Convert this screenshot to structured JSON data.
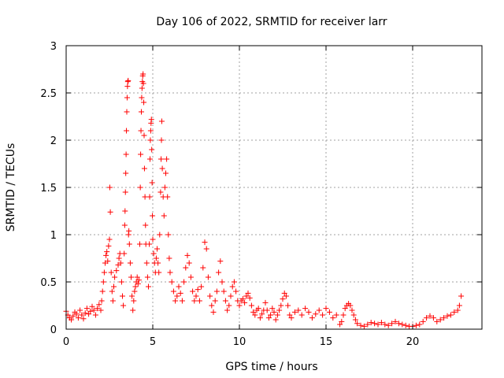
{
  "chart_data": {
    "type": "scatter",
    "title": "Day 106 of 2022, SRMTID for receiver larr",
    "xlabel": "GPS time / hours",
    "ylabel": "SRMTID / TECUs",
    "xlim": [
      0,
      24
    ],
    "ylim": [
      0,
      3
    ],
    "xticks": [
      0,
      5,
      10,
      15,
      20
    ],
    "xtick_labels": [
      "0",
      "5",
      "10",
      "15",
      "20"
    ],
    "yticks": [
      0,
      0.5,
      1,
      1.5,
      2,
      2.5,
      3
    ],
    "ytick_labels": [
      "0",
      "0.5",
      "1",
      "1.5",
      "2",
      "2.5",
      "3"
    ],
    "grid": true,
    "marker": "plus",
    "series": [
      {
        "name": "SRMTID",
        "color": "#ff0000",
        "points": [
          [
            0.0,
            0.19
          ],
          [
            0.1,
            0.15
          ],
          [
            0.2,
            0.12
          ],
          [
            0.3,
            0.1
          ],
          [
            0.4,
            0.14
          ],
          [
            0.5,
            0.18
          ],
          [
            0.6,
            0.16
          ],
          [
            0.7,
            0.12
          ],
          [
            0.8,
            0.2
          ],
          [
            0.9,
            0.15
          ],
          [
            1.0,
            0.11
          ],
          [
            1.1,
            0.17
          ],
          [
            1.2,
            0.22
          ],
          [
            1.3,
            0.16
          ],
          [
            1.4,
            0.19
          ],
          [
            1.5,
            0.24
          ],
          [
            1.6,
            0.2
          ],
          [
            1.7,
            0.15
          ],
          [
            1.8,
            0.22
          ],
          [
            1.9,
            0.26
          ],
          [
            2.0,
            0.2
          ],
          [
            2.05,
            0.3
          ],
          [
            2.1,
            0.4
          ],
          [
            2.15,
            0.5
          ],
          [
            2.2,
            0.6
          ],
          [
            2.25,
            0.7
          ],
          [
            2.3,
            0.78
          ],
          [
            2.35,
            0.82
          ],
          [
            2.4,
            0.72
          ],
          [
            2.45,
            0.88
          ],
          [
            2.5,
            0.95
          ],
          [
            2.52,
            1.5
          ],
          [
            2.55,
            1.24
          ],
          [
            2.6,
            0.6
          ],
          [
            2.65,
            0.4
          ],
          [
            2.7,
            0.3
          ],
          [
            2.75,
            0.45
          ],
          [
            2.8,
            0.55
          ],
          [
            2.9,
            0.62
          ],
          [
            3.0,
            0.68
          ],
          [
            3.05,
            0.75
          ],
          [
            3.1,
            0.8
          ],
          [
            3.15,
            0.7
          ],
          [
            3.2,
            0.5
          ],
          [
            3.25,
            0.35
          ],
          [
            3.3,
            0.25
          ],
          [
            3.35,
            0.8
          ],
          [
            3.38,
            1.1
          ],
          [
            3.4,
            1.25
          ],
          [
            3.42,
            1.45
          ],
          [
            3.44,
            1.65
          ],
          [
            3.46,
            1.85
          ],
          [
            3.48,
            2.1
          ],
          [
            3.5,
            2.3
          ],
          [
            3.52,
            2.45
          ],
          [
            3.54,
            2.57
          ],
          [
            3.56,
            2.62
          ],
          [
            3.58,
            2.63
          ],
          [
            3.6,
            1.0
          ],
          [
            3.62,
            1.04
          ],
          [
            3.65,
            0.9
          ],
          [
            3.7,
            0.7
          ],
          [
            3.75,
            0.55
          ],
          [
            3.8,
            0.35
          ],
          [
            3.85,
            0.2
          ],
          [
            3.9,
            0.3
          ],
          [
            3.95,
            0.4
          ],
          [
            4.0,
            0.45
          ],
          [
            4.05,
            0.5
          ],
          [
            4.1,
            0.55
          ],
          [
            4.15,
            0.48
          ],
          [
            4.2,
            0.52
          ],
          [
            4.25,
            0.9
          ],
          [
            4.28,
            1.5
          ],
          [
            4.3,
            1.85
          ],
          [
            4.32,
            2.1
          ],
          [
            4.34,
            2.3
          ],
          [
            4.36,
            2.45
          ],
          [
            4.38,
            2.55
          ],
          [
            4.4,
            2.62
          ],
          [
            4.42,
            2.68
          ],
          [
            4.44,
            2.7
          ],
          [
            4.46,
            2.6
          ],
          [
            4.48,
            2.4
          ],
          [
            4.5,
            2.05
          ],
          [
            4.52,
            1.7
          ],
          [
            4.55,
            1.4
          ],
          [
            4.58,
            1.1
          ],
          [
            4.6,
            0.9
          ],
          [
            4.65,
            0.7
          ],
          [
            4.7,
            0.55
          ],
          [
            4.75,
            0.45
          ],
          [
            4.8,
            0.9
          ],
          [
            4.82,
            1.4
          ],
          [
            4.84,
            1.8
          ],
          [
            4.86,
            2.0
          ],
          [
            4.88,
            2.1
          ],
          [
            4.9,
            2.18
          ],
          [
            4.92,
            2.22
          ],
          [
            4.94,
            1.9
          ],
          [
            4.96,
            1.55
          ],
          [
            4.98,
            1.2
          ],
          [
            5.0,
            0.95
          ],
          [
            5.05,
            0.8
          ],
          [
            5.1,
            0.7
          ],
          [
            5.15,
            0.6
          ],
          [
            5.2,
            0.75
          ],
          [
            5.25,
            0.85
          ],
          [
            5.3,
            0.7
          ],
          [
            5.35,
            0.6
          ],
          [
            5.4,
            1.0
          ],
          [
            5.45,
            1.45
          ],
          [
            5.48,
            1.8
          ],
          [
            5.5,
            2.0
          ],
          [
            5.52,
            2.2
          ],
          [
            5.55,
            1.7
          ],
          [
            5.6,
            1.4
          ],
          [
            5.65,
            1.2
          ],
          [
            5.7,
            1.5
          ],
          [
            5.75,
            1.65
          ],
          [
            5.8,
            1.8
          ],
          [
            5.85,
            1.4
          ],
          [
            5.9,
            1.0
          ],
          [
            5.95,
            0.75
          ],
          [
            6.0,
            0.6
          ],
          [
            6.1,
            0.5
          ],
          [
            6.2,
            0.4
          ],
          [
            6.3,
            0.3
          ],
          [
            6.4,
            0.35
          ],
          [
            6.5,
            0.45
          ],
          [
            6.6,
            0.38
          ],
          [
            6.7,
            0.3
          ],
          [
            6.8,
            0.5
          ],
          [
            6.9,
            0.65
          ],
          [
            7.0,
            0.78
          ],
          [
            7.1,
            0.7
          ],
          [
            7.2,
            0.55
          ],
          [
            7.3,
            0.4
          ],
          [
            7.4,
            0.3
          ],
          [
            7.5,
            0.35
          ],
          [
            7.6,
            0.42
          ],
          [
            7.7,
            0.3
          ],
          [
            7.8,
            0.45
          ],
          [
            7.9,
            0.65
          ],
          [
            8.0,
            0.92
          ],
          [
            8.1,
            0.85
          ],
          [
            8.2,
            0.55
          ],
          [
            8.3,
            0.35
          ],
          [
            8.4,
            0.25
          ],
          [
            8.5,
            0.18
          ],
          [
            8.6,
            0.3
          ],
          [
            8.7,
            0.4
          ],
          [
            8.8,
            0.6
          ],
          [
            8.9,
            0.72
          ],
          [
            9.0,
            0.5
          ],
          [
            9.1,
            0.4
          ],
          [
            9.2,
            0.3
          ],
          [
            9.3,
            0.2
          ],
          [
            9.4,
            0.25
          ],
          [
            9.5,
            0.35
          ],
          [
            9.6,
            0.45
          ],
          [
            9.7,
            0.5
          ],
          [
            9.8,
            0.4
          ],
          [
            9.9,
            0.3
          ],
          [
            10.0,
            0.25
          ],
          [
            10.1,
            0.3
          ],
          [
            10.2,
            0.32
          ],
          [
            10.3,
            0.28
          ],
          [
            10.4,
            0.35
          ],
          [
            10.5,
            0.38
          ],
          [
            10.6,
            0.33
          ],
          [
            10.7,
            0.25
          ],
          [
            10.8,
            0.18
          ],
          [
            10.9,
            0.15
          ],
          [
            11.0,
            0.2
          ],
          [
            11.1,
            0.22
          ],
          [
            11.2,
            0.12
          ],
          [
            11.3,
            0.16
          ],
          [
            11.4,
            0.2
          ],
          [
            11.5,
            0.28
          ],
          [
            11.6,
            0.2
          ],
          [
            11.7,
            0.12
          ],
          [
            11.8,
            0.15
          ],
          [
            11.9,
            0.22
          ],
          [
            12.0,
            0.18
          ],
          [
            12.1,
            0.1
          ],
          [
            12.2,
            0.15
          ],
          [
            12.3,
            0.2
          ],
          [
            12.4,
            0.25
          ],
          [
            12.5,
            0.32
          ],
          [
            12.6,
            0.38
          ],
          [
            12.7,
            0.35
          ],
          [
            12.8,
            0.25
          ],
          [
            12.9,
            0.15
          ],
          [
            13.0,
            0.12
          ],
          [
            13.2,
            0.18
          ],
          [
            13.4,
            0.2
          ],
          [
            13.6,
            0.15
          ],
          [
            13.8,
            0.22
          ],
          [
            14.0,
            0.18
          ],
          [
            14.2,
            0.12
          ],
          [
            14.4,
            0.16
          ],
          [
            14.6,
            0.2
          ],
          [
            14.8,
            0.15
          ],
          [
            15.0,
            0.22
          ],
          [
            15.2,
            0.18
          ],
          [
            15.4,
            0.12
          ],
          [
            15.6,
            0.15
          ],
          [
            15.8,
            0.05
          ],
          [
            15.9,
            0.08
          ],
          [
            16.0,
            0.15
          ],
          [
            16.1,
            0.22
          ],
          [
            16.2,
            0.25
          ],
          [
            16.3,
            0.27
          ],
          [
            16.4,
            0.25
          ],
          [
            16.5,
            0.2
          ],
          [
            16.6,
            0.15
          ],
          [
            16.7,
            0.1
          ],
          [
            16.8,
            0.06
          ],
          [
            17.0,
            0.04
          ],
          [
            17.2,
            0.03
          ],
          [
            17.4,
            0.05
          ],
          [
            17.6,
            0.07
          ],
          [
            17.8,
            0.06
          ],
          [
            18.0,
            0.05
          ],
          [
            18.2,
            0.07
          ],
          [
            18.4,
            0.05
          ],
          [
            18.6,
            0.04
          ],
          [
            18.8,
            0.06
          ],
          [
            19.0,
            0.08
          ],
          [
            19.2,
            0.06
          ],
          [
            19.4,
            0.05
          ],
          [
            19.6,
            0.04
          ],
          [
            19.8,
            0.03
          ],
          [
            20.0,
            0.03
          ],
          [
            20.2,
            0.04
          ],
          [
            20.4,
            0.05
          ],
          [
            20.6,
            0.08
          ],
          [
            20.8,
            0.12
          ],
          [
            21.0,
            0.14
          ],
          [
            21.2,
            0.12
          ],
          [
            21.4,
            0.08
          ],
          [
            21.6,
            0.1
          ],
          [
            21.8,
            0.12
          ],
          [
            22.0,
            0.14
          ],
          [
            22.2,
            0.15
          ],
          [
            22.4,
            0.18
          ],
          [
            22.6,
            0.2
          ],
          [
            22.7,
            0.25
          ],
          [
            22.8,
            0.35
          ]
        ]
      }
    ]
  }
}
